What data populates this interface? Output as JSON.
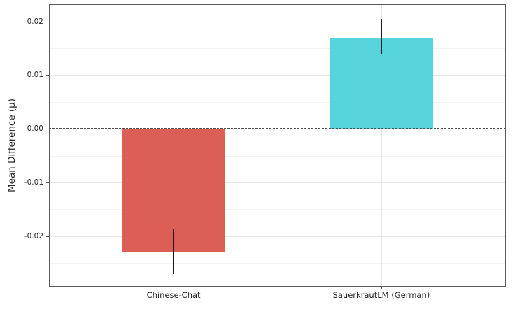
{
  "chart_data": {
    "type": "bar",
    "title": "",
    "xlabel": "",
    "ylabel": "Mean Difference (μ)",
    "categories": [
      "Chinese-Chat",
      "SauerkrautLM (German)"
    ],
    "values": [
      -0.023,
      0.017
    ],
    "error_bars": [
      {
        "low": -0.027,
        "high": -0.0187
      },
      {
        "low": 0.014,
        "high": 0.0205
      }
    ],
    "bar_colors": [
      "#db5f57",
      "#57d3db"
    ],
    "ylim": [
      -0.0294,
      0.0232
    ],
    "xlim": [
      -0.6,
      1.6
    ],
    "bar_width_units": 0.5,
    "y_major_ticks": [
      0.02,
      0.01,
      0.0,
      -0.01,
      -0.02
    ],
    "y_tick_labels": [
      "0.02",
      "0.01",
      "0.00",
      "-0.01",
      "-0.02"
    ],
    "y_minor_ticks": [
      0.015,
      0.005,
      -0.005,
      -0.015,
      -0.025
    ],
    "zero_line_value": 0.0,
    "grid": "horizontal major+minor on, vertical at category positions",
    "legend": "none",
    "colors": {
      "background": "#ffffff",
      "grid_major": "#e6e6e6",
      "grid_minor": "#f3f3f3",
      "spine": "#5a5a5a",
      "zero_line": "#4d4d4d",
      "error_bar": "#1a1a1a",
      "text": "#262626"
    }
  }
}
